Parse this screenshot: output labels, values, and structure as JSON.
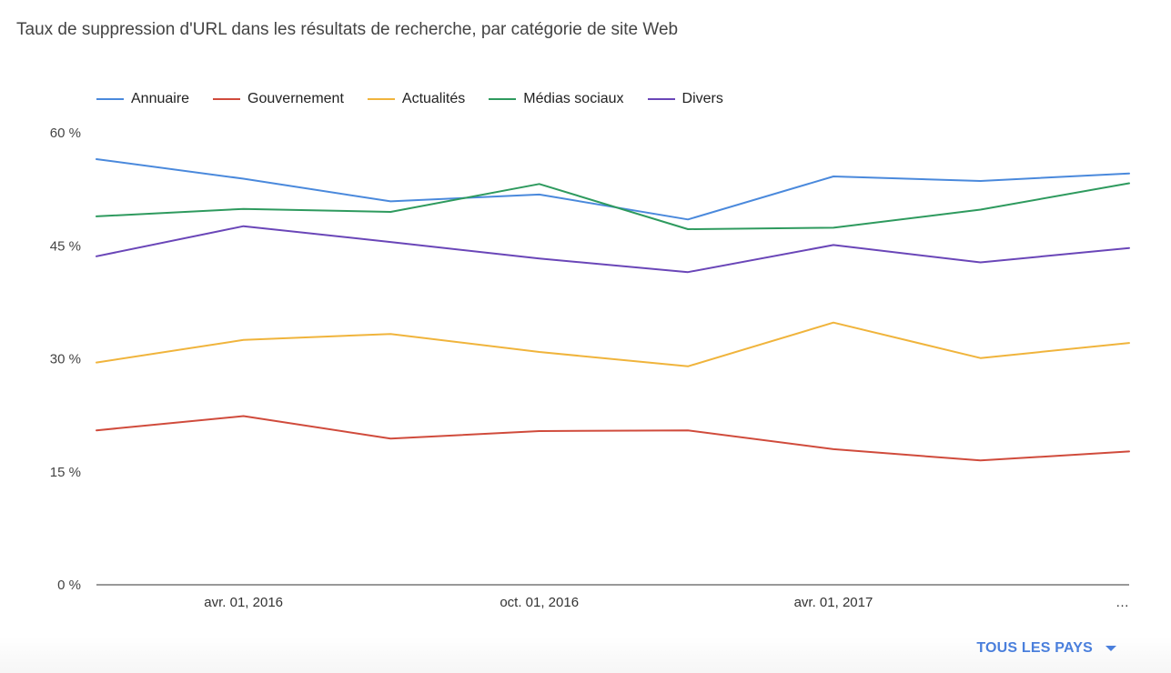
{
  "chart_data": {
    "type": "line",
    "title": "Taux de suppression d'URL dans les résultats de recherche, par catégorie de site Web",
    "x": [
      "2016-01-01",
      "2016-04-01",
      "2016-07-01",
      "2016-10-01",
      "2017-01-01",
      "2017-04-01",
      "2017-07-01",
      "2017-10-01"
    ],
    "x_tick_labels": [
      {
        "at": "2016-04-01",
        "label": "avr. 01, 2016"
      },
      {
        "at": "2016-10-01",
        "label": "oct. 01, 2016"
      },
      {
        "at": "2017-04-01",
        "label": "avr. 01, 2017"
      },
      {
        "at": "2017-10-01",
        "label": "…"
      }
    ],
    "y_ticks": [
      {
        "value": 0,
        "label": "0 %"
      },
      {
        "value": 15,
        "label": "15 %"
      },
      {
        "value": 30,
        "label": "30 %"
      },
      {
        "value": 45,
        "label": "45 %"
      },
      {
        "value": 60,
        "label": "60 %"
      }
    ],
    "ylim": [
      0,
      60
    ],
    "legend_position": "top-left",
    "grid": false,
    "series": [
      {
        "name": "Annuaire",
        "color": "#4a89dc",
        "values": [
          56.5,
          53.9,
          50.9,
          51.8,
          48.5,
          54.2,
          53.6,
          54.6
        ]
      },
      {
        "name": "Gouvernement",
        "color": "#d04b3c",
        "values": [
          20.5,
          22.4,
          19.4,
          20.4,
          20.5,
          18.0,
          16.5,
          17.7
        ]
      },
      {
        "name": "Actualités",
        "color": "#f0b43c",
        "values": [
          29.5,
          32.5,
          33.3,
          30.9,
          29.0,
          34.8,
          30.1,
          32.1
        ]
      },
      {
        "name": "Médias sociaux",
        "color": "#2e9a5e",
        "values": [
          48.9,
          49.9,
          49.5,
          53.2,
          47.2,
          47.4,
          49.8,
          53.3
        ]
      },
      {
        "name": "Divers",
        "color": "#6a46b8",
        "values": [
          43.6,
          47.6,
          45.5,
          43.3,
          41.5,
          45.1,
          42.8,
          44.7
        ]
      }
    ]
  },
  "footer": {
    "country_selector_label": "TOUS LES PAYS",
    "icon": "caret-down-icon",
    "accent": "#4a7fdc"
  }
}
